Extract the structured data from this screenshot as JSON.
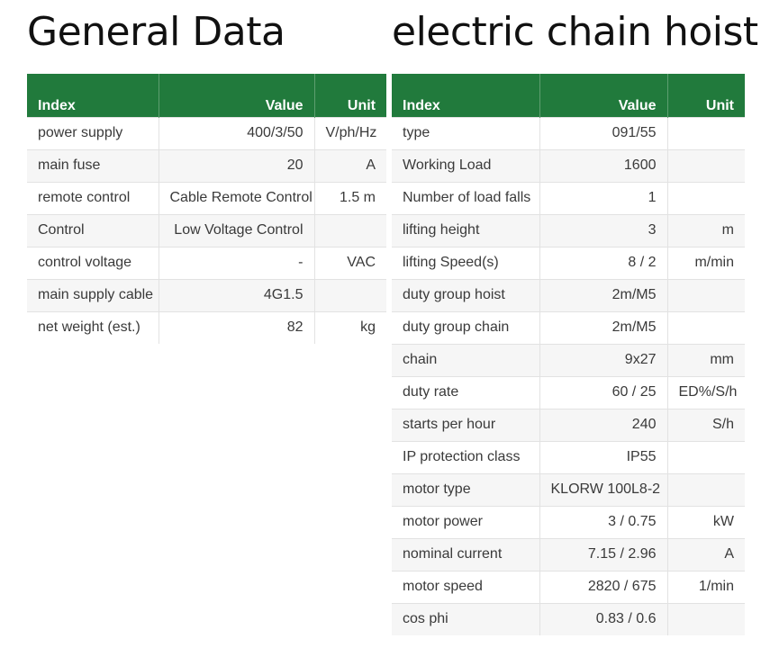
{
  "general": {
    "title": "General Data",
    "headers": {
      "index": "Index",
      "value": "Value",
      "unit": "Unit"
    },
    "rows": [
      {
        "index": "power supply",
        "value": "400/3/50",
        "unit": "V/ph/Hz"
      },
      {
        "index": "main fuse",
        "value": "20",
        "unit": "A"
      },
      {
        "index": "remote control",
        "value": "Cable Remote Control",
        "unit": "1.5 m"
      },
      {
        "index": "Control",
        "value": "Low Voltage Control",
        "unit": ""
      },
      {
        "index": "control voltage",
        "value": "-",
        "unit": "VAC"
      },
      {
        "index": "main supply cable",
        "value": "4G1.5",
        "unit": ""
      },
      {
        "index": "net weight (est.)",
        "value": "82",
        "unit": "kg"
      }
    ]
  },
  "hoist": {
    "title": "electric chain hoist",
    "headers": {
      "index": "Index",
      "value": "Value",
      "unit": "Unit"
    },
    "rows": [
      {
        "index": "type",
        "value": "091/55",
        "unit": ""
      },
      {
        "index": "Working Load",
        "value": "1600",
        "unit": ""
      },
      {
        "index": "Number of load falls",
        "value": "1",
        "unit": ""
      },
      {
        "index": "lifting height",
        "value": "3",
        "unit": "m"
      },
      {
        "index": "lifting Speed(s)",
        "value": "8 / 2",
        "unit": "m/min"
      },
      {
        "index": "duty group hoist",
        "value": "2m/M5",
        "unit": ""
      },
      {
        "index": "duty group chain",
        "value": "2m/M5",
        "unit": ""
      },
      {
        "index": "chain",
        "value": "9x27",
        "unit": "mm"
      },
      {
        "index": "duty rate",
        "value": "60 / 25",
        "unit": "ED%/S/h"
      },
      {
        "index": "starts per hour",
        "value": "240",
        "unit": "S/h"
      },
      {
        "index": "IP protection class",
        "value": "IP55",
        "unit": ""
      },
      {
        "index": "motor type",
        "value": "KLORW 100L8-2",
        "unit": ""
      },
      {
        "index": "motor power",
        "value": "3 / 0.75",
        "unit": "kW"
      },
      {
        "index": "nominal current",
        "value": "7.15 / 2.96",
        "unit": "A"
      },
      {
        "index": "motor speed",
        "value": "2820 / 675",
        "unit": "1/min"
      },
      {
        "index": "cos phi",
        "value": "0.83 / 0.6",
        "unit": ""
      }
    ]
  },
  "colors": {
    "header_green": "#217a3c",
    "row_stripe": "#f6f6f6",
    "text": "#3a3a3a"
  }
}
